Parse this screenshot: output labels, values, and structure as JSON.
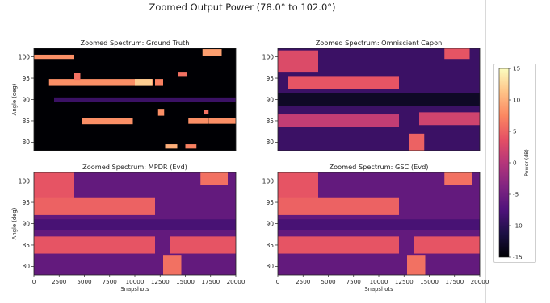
{
  "figure": {
    "title": "Zoomed Output Power (78.0° to 102.0°)"
  },
  "chart_data": [
    {
      "type": "heatmap",
      "title": "Zoomed Spectrum: Ground Truth",
      "ylabel": "Angle (deg)",
      "xlabel": "",
      "xlim": [
        0,
        20000
      ],
      "ylim": [
        78,
        102
      ],
      "yticks": [
        80,
        85,
        90,
        95,
        100
      ],
      "xticks": [],
      "colormap": "magma",
      "background_db": -15,
      "bands": [
        {
          "x": [
            0,
            4000
          ],
          "y": [
            99.5,
            100.5
          ],
          "db": 8
        },
        {
          "x": [
            2000,
            20000
          ],
          "y": [
            89.5,
            90.5
          ],
          "db": -9
        },
        {
          "x": [
            1500,
            11800
          ],
          "y": [
            93.2,
            94.8
          ],
          "db": 8
        },
        {
          "x": [
            10000,
            11700
          ],
          "y": [
            93.2,
            94.8
          ],
          "db": 12
        },
        {
          "x": [
            12000,
            12800
          ],
          "y": [
            93.2,
            94.8
          ],
          "db": 7
        },
        {
          "x": [
            4000,
            4600
          ],
          "y": [
            94.6,
            96.2
          ],
          "db": 6
        },
        {
          "x": [
            4800,
            9800
          ],
          "y": [
            84.2,
            85.6
          ],
          "db": 8
        },
        {
          "x": [
            12300,
            12900
          ],
          "y": [
            86.2,
            87.8
          ],
          "db": 8
        },
        {
          "x": [
            13000,
            14200
          ],
          "y": [
            78.5,
            79.5
          ],
          "db": 10
        },
        {
          "x": [
            15000,
            16100
          ],
          "y": [
            78.5,
            79.5
          ],
          "db": 7
        },
        {
          "x": [
            14300,
            15200
          ],
          "y": [
            95.5,
            96.5
          ],
          "db": 6
        },
        {
          "x": [
            15300,
            17200
          ],
          "y": [
            84.3,
            85.6
          ],
          "db": 8
        },
        {
          "x": [
            16800,
            17300
          ],
          "y": [
            86.5,
            87.5
          ],
          "db": 6
        },
        {
          "x": [
            17300,
            20000
          ],
          "y": [
            84.3,
            85.6
          ],
          "db": 8
        },
        {
          "x": [
            16700,
            18600
          ],
          "y": [
            100.3,
            101.8
          ],
          "db": 9
        }
      ]
    },
    {
      "type": "heatmap",
      "title": "Zoomed Spectrum: Omniscient Capon",
      "ylabel": "",
      "xlabel": "",
      "xlim": [
        0,
        20000
      ],
      "ylim": [
        78,
        102
      ],
      "yticks": [
        80,
        85,
        90,
        95,
        100
      ],
      "xticks": [],
      "colormap": "magma",
      "background_db": -9,
      "bands": [
        {
          "x": [
            0,
            4000
          ],
          "y": [
            96.5,
            101.5
          ],
          "db": 3
        },
        {
          "x": [
            1000,
            12000
          ],
          "y": [
            92.5,
            95.5
          ],
          "db": 4
        },
        {
          "x": [
            0,
            12000
          ],
          "y": [
            83.5,
            86.5
          ],
          "db": 1
        },
        {
          "x": [
            13000,
            14500
          ],
          "y": [
            78,
            82
          ],
          "db": 5
        },
        {
          "x": [
            14000,
            20000
          ],
          "y": [
            84,
            87
          ],
          "db": 2
        },
        {
          "x": [
            16500,
            19000
          ],
          "y": [
            99.5,
            102
          ],
          "db": 4
        },
        {
          "x": [
            0,
            20000
          ],
          "y": [
            88.5,
            91.5
          ],
          "db": -13
        }
      ]
    },
    {
      "type": "heatmap",
      "title": "Zoomed Spectrum: MPDR (Evd)",
      "ylabel": "Angle (deg)",
      "xlabel": "Snapshots",
      "xlim": [
        0,
        20000
      ],
      "ylim": [
        78,
        102
      ],
      "yticks": [
        80,
        85,
        90,
        95,
        100
      ],
      "xticks": [
        0,
        2500,
        5000,
        7500,
        10000,
        12500,
        15000,
        17500,
        20000
      ],
      "colormap": "magma",
      "background_db": -6,
      "bands": [
        {
          "x": [
            0,
            4000
          ],
          "y": [
            95,
            102
          ],
          "db": 4
        },
        {
          "x": [
            0,
            12000
          ],
          "y": [
            92,
            96
          ],
          "db": 5
        },
        {
          "x": [
            0,
            12000
          ],
          "y": [
            83,
            87
          ],
          "db": 4
        },
        {
          "x": [
            12800,
            14600
          ],
          "y": [
            78,
            82.5
          ],
          "db": 6
        },
        {
          "x": [
            13500,
            20000
          ],
          "y": [
            83,
            87
          ],
          "db": 4
        },
        {
          "x": [
            16500,
            19200
          ],
          "y": [
            99,
            102
          ],
          "db": 6
        },
        {
          "x": [
            0,
            20000
          ],
          "y": [
            88.5,
            91
          ],
          "db": -8
        }
      ]
    },
    {
      "type": "heatmap",
      "title": "Zoomed Spectrum: GSC (Evd)",
      "ylabel": "",
      "xlabel": "Snapshots",
      "xlim": [
        0,
        20000
      ],
      "ylim": [
        78,
        102
      ],
      "yticks": [
        80,
        85,
        90,
        95,
        100
      ],
      "xticks": [
        0,
        2500,
        5000,
        7500,
        10000,
        12500,
        15000,
        17500,
        20000
      ],
      "colormap": "magma",
      "background_db": -6,
      "bands": [
        {
          "x": [
            0,
            4000
          ],
          "y": [
            95,
            102
          ],
          "db": 4
        },
        {
          "x": [
            0,
            12000
          ],
          "y": [
            92,
            96
          ],
          "db": 5
        },
        {
          "x": [
            0,
            12000
          ],
          "y": [
            83,
            87
          ],
          "db": 4
        },
        {
          "x": [
            12800,
            14600
          ],
          "y": [
            78,
            82.5
          ],
          "db": 6
        },
        {
          "x": [
            13500,
            20000
          ],
          "y": [
            83,
            87
          ],
          "db": 4
        },
        {
          "x": [
            16500,
            19200
          ],
          "y": [
            99,
            102
          ],
          "db": 6
        },
        {
          "x": [
            0,
            20000
          ],
          "y": [
            88.5,
            91
          ],
          "db": -8
        }
      ]
    }
  ],
  "colorbar": {
    "label": "Power (dB)",
    "min": -15,
    "max": 15,
    "ticks": [
      15,
      10,
      5,
      0,
      -5,
      -10,
      -15
    ],
    "colormap": "magma",
    "stops": [
      "#000004",
      "#1c1044",
      "#4f127b",
      "#812581",
      "#b5367a",
      "#e55064",
      "#fb8761",
      "#fec287",
      "#fcfdbf"
    ]
  }
}
